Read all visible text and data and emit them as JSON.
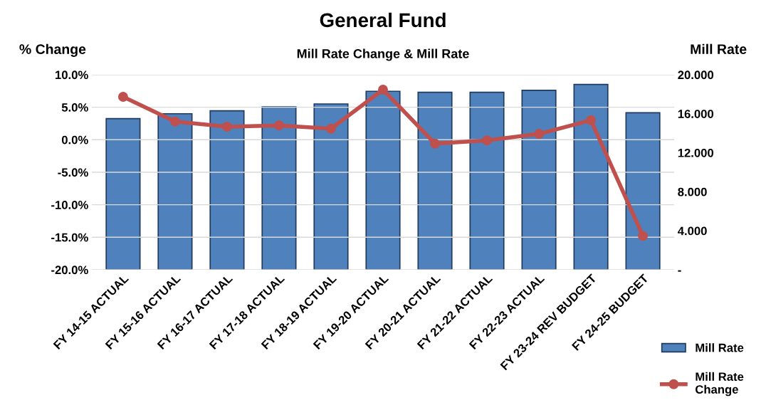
{
  "chart_data": {
    "type": "bar",
    "title": "General Fund",
    "subtitle": "Mill Rate Change & Mill Rate",
    "ylabel": "% Change",
    "y2label": "Mill Rate",
    "categories": [
      "FY 14-15 ACTUAL",
      "FY 15-16 ACTUAL",
      "FY 16-17 ACTUAL",
      "FY 17-18 ACTUAL",
      "FY 18-19 ACTUAL",
      "FY 19-20 ACTUAL",
      "FY 20-21 ACTUAL",
      "FY 21-22 ACTUAL",
      "FY 22-23 ACTUAL",
      "FY 23-24 REV BUDGET",
      "FY 24-25 BUDGET"
    ],
    "series": [
      {
        "name": "Mill Rate",
        "axis": "y2",
        "color": "#4f81bd",
        "values": [
          15.5,
          16.0,
          16.3,
          16.7,
          17.0,
          18.3,
          18.2,
          18.2,
          18.4,
          19.0,
          16.1
        ]
      },
      {
        "name": "Mill Rate\nChange",
        "type": "line",
        "color": "#c0504d",
        "marker": "circle",
        "values": [
          6.6,
          2.8,
          2.0,
          2.2,
          1.7,
          7.7,
          -0.6,
          -0.1,
          0.9,
          3.0,
          -14.8
        ]
      }
    ],
    "ylim": [
      -20,
      10
    ],
    "yticks": [
      {
        "value": -20,
        "label": "-20.0%"
      },
      {
        "value": -15,
        "label": "-15.0%"
      },
      {
        "value": -10,
        "label": "-10.0%"
      },
      {
        "value": -5,
        "label": "-5.0%"
      },
      {
        "value": 0,
        "label": "0.0%"
      },
      {
        "value": 5,
        "label": "5.0%"
      },
      {
        "value": 10,
        "label": "10.0%"
      }
    ],
    "y2lim": [
      0,
      20
    ],
    "y2ticks": [
      {
        "value": 0,
        "label": "-"
      },
      {
        "value": 4,
        "label": "4.000"
      },
      {
        "value": 8,
        "label": "8.000"
      },
      {
        "value": 12,
        "label": "12.000"
      },
      {
        "value": 16,
        "label": "16.000"
      },
      {
        "value": 20,
        "label": "20.000"
      }
    ],
    "grid": "y",
    "legend": "bottom right"
  }
}
